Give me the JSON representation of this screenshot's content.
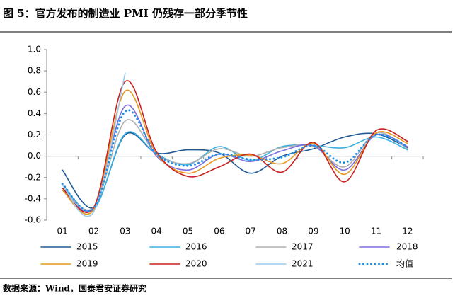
{
  "chart_data": {
    "type": "line",
    "title": "图 5：官方发布的制造业 PMI 仍残存一部分季节性",
    "source": "数据来源：Wind，国泰君安证券研究",
    "categories": [
      "01",
      "02",
      "03",
      "04",
      "05",
      "06",
      "07",
      "08",
      "09",
      "10",
      "11",
      "12"
    ],
    "ylim": [
      -0.6,
      1.0
    ],
    "yticks": [
      {
        "value": -0.6,
        "label": "-0.6"
      },
      {
        "value": -0.4,
        "label": "-0.4"
      },
      {
        "value": -0.2,
        "label": "-0.2"
      },
      {
        "value": 0,
        "label": "0.0"
      },
      {
        "value": 0.2,
        "label": "0.2"
      },
      {
        "value": 0.4,
        "label": "0.4"
      },
      {
        "value": 0.6,
        "label": "0.6"
      },
      {
        "value": 0.8,
        "label": "0.8"
      },
      {
        "value": 1.0,
        "label": "1.0"
      }
    ],
    "series": [
      {
        "name": "2015",
        "color": "#1f5a96",
        "values": [
          -0.13,
          -0.48,
          0.2,
          0.03,
          0.06,
          0.03,
          -0.16,
          0.0,
          0.07,
          0.18,
          0.21,
          0.08
        ]
      },
      {
        "name": "2016",
        "color": "#3cb0e0",
        "values": [
          -0.27,
          -0.5,
          0.21,
          0.02,
          -0.08,
          0.09,
          -0.04,
          0.09,
          0.1,
          0.08,
          0.18,
          0.06
        ]
      },
      {
        "name": "2017",
        "color": "#b0b0b0",
        "values": [
          -0.3,
          -0.48,
          0.33,
          0.02,
          -0.07,
          0.07,
          0.0,
          0.08,
          0.09,
          -0.1,
          0.22,
          0.07
        ]
      },
      {
        "name": "2018",
        "color": "#7b6fe0",
        "values": [
          -0.32,
          -0.48,
          0.47,
          0.0,
          -0.13,
          0.02,
          -0.05,
          0.05,
          0.1,
          -0.13,
          0.2,
          0.09
        ]
      },
      {
        "name": "2019",
        "color": "#e8961e",
        "values": [
          -0.32,
          -0.5,
          0.61,
          0.02,
          -0.16,
          -0.02,
          0.01,
          -0.07,
          0.12,
          -0.17,
          0.22,
          0.12
        ]
      },
      {
        "name": "2020",
        "color": "#c8201e",
        "values": [
          -0.3,
          -0.48,
          0.7,
          0.04,
          -0.19,
          -0.1,
          0.02,
          -0.15,
          0.13,
          -0.24,
          0.24,
          0.14
        ]
      },
      {
        "name": "2021",
        "color": "#9ccbee",
        "values": [
          -0.27,
          -0.52,
          0.78,
          null,
          null,
          null,
          null,
          null,
          null,
          null,
          null,
          null
        ]
      },
      {
        "name": "均值",
        "color": "#1e90e8",
        "dotted": true,
        "values": [
          -0.26,
          -0.49,
          0.42,
          0.02,
          -0.09,
          0.02,
          -0.03,
          -0.01,
          0.1,
          -0.06,
          0.2,
          0.09
        ]
      }
    ]
  }
}
